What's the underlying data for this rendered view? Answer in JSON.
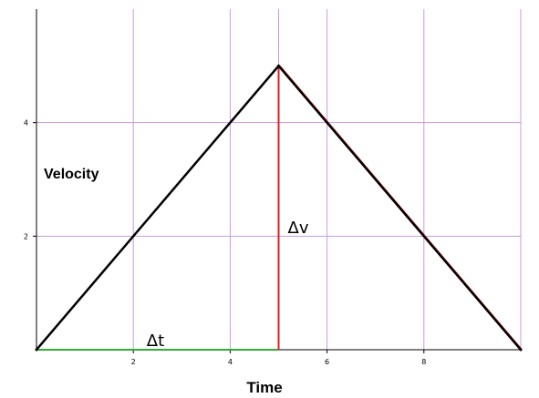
{
  "chart_data": {
    "type": "line",
    "title": "",
    "xlabel": "Time",
    "ylabel": "Velocity",
    "xlim": [
      0,
      10
    ],
    "ylim": [
      0,
      6
    ],
    "x_ticks": [
      2,
      4,
      6,
      8
    ],
    "y_ticks": [
      2,
      4
    ],
    "grid": true,
    "series": [
      {
        "x": [
          0,
          5,
          10
        ],
        "y": [
          0,
          5,
          0
        ],
        "color": "#000000"
      }
    ],
    "annotations": [
      {
        "label": "Δt",
        "from": [
          0,
          0
        ],
        "to": [
          5,
          0
        ],
        "color": "#33aa33"
      },
      {
        "label": "Δv",
        "from": [
          5,
          0
        ],
        "to": [
          5,
          5
        ],
        "color": "#dd2222"
      }
    ],
    "highlight": {
      "from": [
        5,
        5
      ],
      "to": [
        10,
        0
      ],
      "color": "#dd2222"
    },
    "colors": {
      "grid": "#cc99dd",
      "axis": "#000000"
    }
  }
}
